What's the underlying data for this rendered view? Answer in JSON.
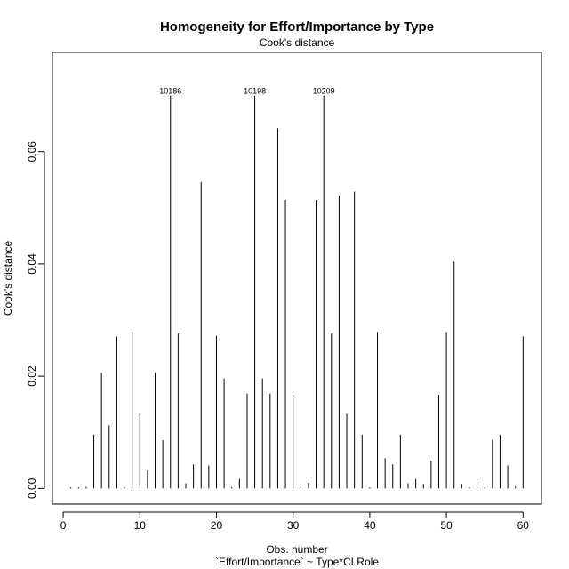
{
  "chart_data": {
    "type": "bar",
    "title": "Homogeneity for Effort/Importance by Type",
    "subtitle": "Cook's distance",
    "xlabel": "Obs. number",
    "xlabel2": "`Effort/Importance` ~ Type*CLRole",
    "ylabel": "Cook's distance",
    "xlim": [
      -1.4,
      62.4
    ],
    "ylim": [
      -0.0028,
      0.0777
    ],
    "xticks": [
      0,
      10,
      20,
      30,
      40,
      50,
      60
    ],
    "yticks": [
      0.0,
      0.02,
      0.04,
      0.06
    ],
    "ytick_labels": [
      "0.00",
      "0.02",
      "0.04",
      "0.06"
    ],
    "grid": false,
    "x": [
      1,
      2,
      3,
      4,
      5,
      6,
      7,
      8,
      9,
      10,
      11,
      12,
      13,
      14,
      15,
      16,
      17,
      18,
      19,
      20,
      21,
      22,
      23,
      24,
      25,
      26,
      27,
      28,
      29,
      30,
      31,
      32,
      33,
      34,
      35,
      36,
      37,
      38,
      39,
      40,
      41,
      42,
      43,
      44,
      45,
      46,
      47,
      48,
      49,
      50,
      51,
      52,
      53,
      54,
      55,
      56,
      57,
      58,
      59,
      60
    ],
    "values": [
      0.0002,
      0.0002,
      0.0003,
      0.0096,
      0.0206,
      0.0112,
      0.0271,
      0.0002,
      0.0279,
      0.0134,
      0.0032,
      0.0206,
      0.0086,
      0.07,
      0.0276,
      0.0009,
      0.0043,
      0.0546,
      0.0041,
      0.0272,
      0.0196,
      0.0002,
      0.0017,
      0.0169,
      0.07,
      0.0196,
      0.0169,
      0.0642,
      0.0514,
      0.0167,
      0.0003,
      0.001,
      0.0514,
      0.07,
      0.0276,
      0.0522,
      0.0133,
      0.0529,
      0.0096,
      0.0002,
      0.0279,
      0.0054,
      0.0043,
      0.0096,
      0.0009,
      0.0017,
      0.0008,
      0.0049,
      0.0167,
      0.0279,
      0.0404,
      0.0008,
      0.0002,
      0.0017,
      0.0002,
      0.0087,
      0.0096,
      0.0041,
      0.0003,
      0.0271
    ],
    "labeled_points": [
      {
        "x": 14,
        "label": "10186"
      },
      {
        "x": 25,
        "label": "10198"
      },
      {
        "x": 34,
        "label": "10209"
      }
    ]
  }
}
